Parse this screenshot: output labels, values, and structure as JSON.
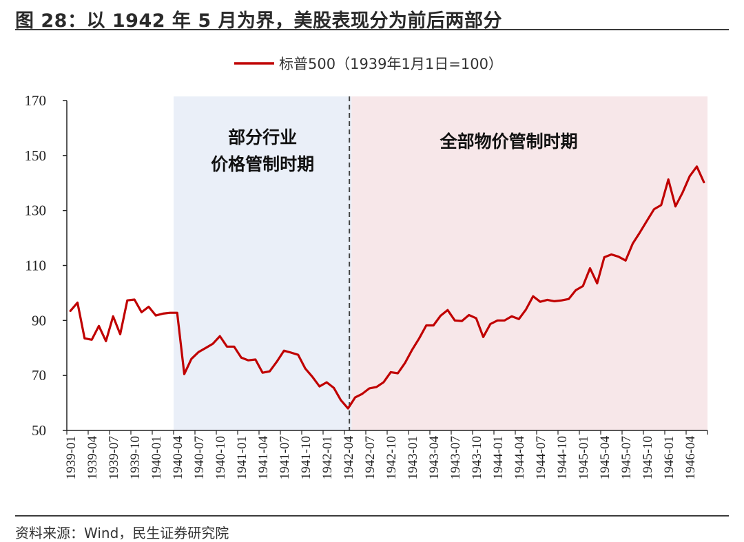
{
  "figure": {
    "title": "图 28：以 1942 年 5 月为界，美股表现分为前后两部分",
    "source": "资料来源：Wind，民生证券研究院"
  },
  "colors": {
    "line": "#c00000",
    "shade_partial": "#eaeff8",
    "shade_full": "#f7e7e9",
    "divider": "#444444"
  },
  "chart_data": {
    "type": "line",
    "title": "",
    "xlabel": "",
    "ylabel": "",
    "ylim": [
      50,
      170
    ],
    "yticks": [
      50,
      70,
      90,
      110,
      130,
      150,
      170
    ],
    "grid": false,
    "legend_position": "top-center",
    "x_start": "1939-01",
    "x_tick_labels": [
      "1939-01",
      "1939-04",
      "1939-07",
      "1939-10",
      "1940-01",
      "1940-04",
      "1940-07",
      "1940-10",
      "1941-01",
      "1941-04",
      "1941-07",
      "1941-10",
      "1942-01",
      "1942-04",
      "1942-07",
      "1942-10",
      "1943-01",
      "1943-04",
      "1943-07",
      "1943-10",
      "1944-01",
      "1944-04",
      "1944-07",
      "1944-10",
      "1945-01",
      "1945-04",
      "1945-07",
      "1945-10",
      "1946-01",
      "1946-04"
    ],
    "series": [
      {
        "name": "标普500（1939年1月1日=100）",
        "values": [
          93.5,
          96.5,
          83.5,
          83.0,
          88.0,
          82.5,
          91.5,
          85.0,
          97.3,
          97.6,
          93.0,
          95.0,
          91.8,
          92.5,
          92.8,
          92.8,
          70.5,
          76.0,
          78.5,
          80.0,
          81.5,
          84.3,
          80.5,
          80.5,
          76.5,
          75.5,
          75.8,
          71.0,
          71.5,
          75.0,
          79.0,
          78.3,
          77.5,
          72.5,
          69.5,
          66.0,
          67.5,
          65.5,
          61.0,
          58.0,
          62.0,
          63.3,
          65.3,
          65.8,
          67.5,
          71.2,
          70.8,
          74.5,
          79.3,
          83.5,
          88.2,
          88.2,
          91.7,
          93.8,
          90.0,
          89.8,
          92.0,
          90.8,
          84.0,
          88.7,
          90.0,
          90.0,
          91.5,
          90.5,
          94.0,
          98.8,
          96.8,
          97.5,
          97.0,
          97.3,
          97.8,
          101.0,
          102.5,
          109.0,
          103.5,
          113.0,
          114.0,
          113.2,
          111.8,
          118.0,
          122.0,
          126.3,
          130.5,
          132.0,
          141.3,
          131.5,
          136.5,
          142.5,
          146.0,
          140.3
        ]
      }
    ],
    "periods": [
      {
        "label_line1": "部分行业",
        "label_line2": "价格管制时期",
        "start": "1940-04",
        "end": "1942-04"
      },
      {
        "label": "全部物价管制时期",
        "start": "1942-05",
        "end": "1946-06"
      }
    ],
    "divider_at": "1942-04"
  }
}
